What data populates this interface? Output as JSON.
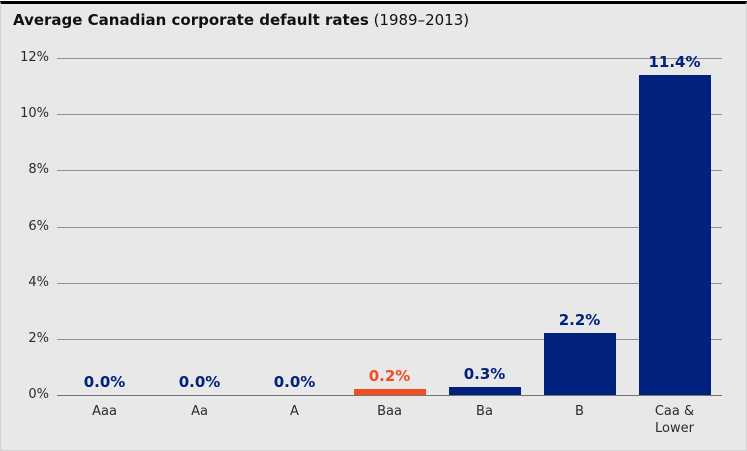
{
  "header": {
    "title_main": "Average Canadian corporate default rates",
    "title_period": " (1989–2013)"
  },
  "colors": {
    "bar_navy": "#01217e",
    "bar_orange": "#f04e23",
    "background": "#e8e8e8",
    "gridline": "#909090",
    "top_border": "#000000"
  },
  "chart_data": {
    "type": "bar",
    "title": "Average Canadian corporate default rates (1989–2013)",
    "categories": [
      "Aaa",
      "Aa",
      "A",
      "Baa",
      "Ba",
      "B",
      "Caa & Lower"
    ],
    "values": [
      0.0,
      0.0,
      0.0,
      0.2,
      0.3,
      2.2,
      11.4
    ],
    "value_labels": [
      "0.0%",
      "0.0%",
      "0.0%",
      "0.2%",
      "0.3%",
      "2.2%",
      "11.4%"
    ],
    "bar_colors": [
      "#01217e",
      "#01217e",
      "#01217e",
      "#f04e23",
      "#01217e",
      "#01217e",
      "#01217e"
    ],
    "label_colors": [
      "#01217e",
      "#01217e",
      "#01217e",
      "#f04e23",
      "#01217e",
      "#01217e",
      "#01217e"
    ],
    "xlabel": "",
    "ylabel": "",
    "ylim": [
      0,
      12
    ],
    "ytick_step": 2,
    "ytick_suffix": "%",
    "grid": "horizontal",
    "legend": "none"
  }
}
